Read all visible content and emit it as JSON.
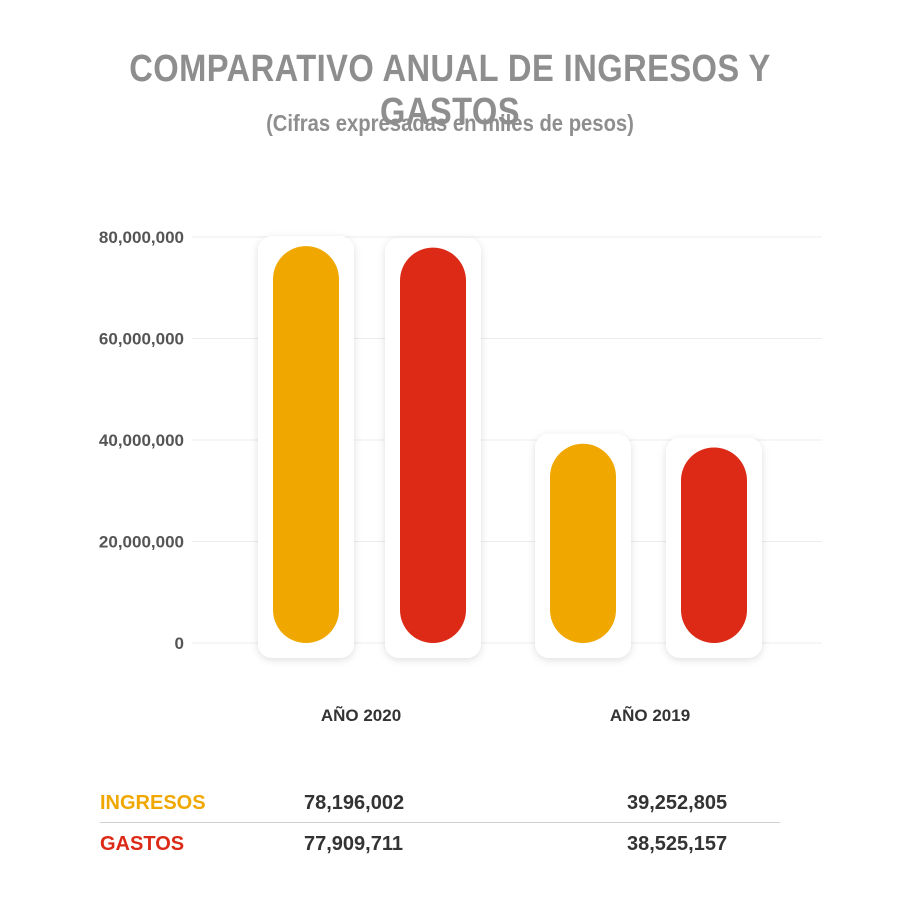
{
  "chart_data": {
    "type": "bar",
    "title": "COMPARATIVO ANUAL DE INGRESOS Y GASTOS",
    "subtitle": "(Cifras expresadas en miles de pesos)",
    "categories": [
      "AÑO 2020",
      "AÑO 2019"
    ],
    "series": [
      {
        "name": "INGRESOS",
        "color": "#f0a800",
        "values": [
          78196002,
          39252805
        ],
        "labels": [
          "78,196,002",
          "39,252,805"
        ]
      },
      {
        "name": "GASTOS",
        "color": "#dc2a17",
        "values": [
          77909711,
          38525157
        ],
        "labels": [
          "77,909,711",
          "38,525,157"
        ]
      }
    ],
    "ylim": [
      0,
      80000000
    ],
    "yticks": [
      0,
      20000000,
      40000000,
      60000000,
      80000000
    ],
    "ytick_labels": [
      "0",
      "20,000,000",
      "40,000,000",
      "60,000,000",
      "80,000,000"
    ],
    "grid": true,
    "xlabel": "",
    "ylabel": ""
  }
}
